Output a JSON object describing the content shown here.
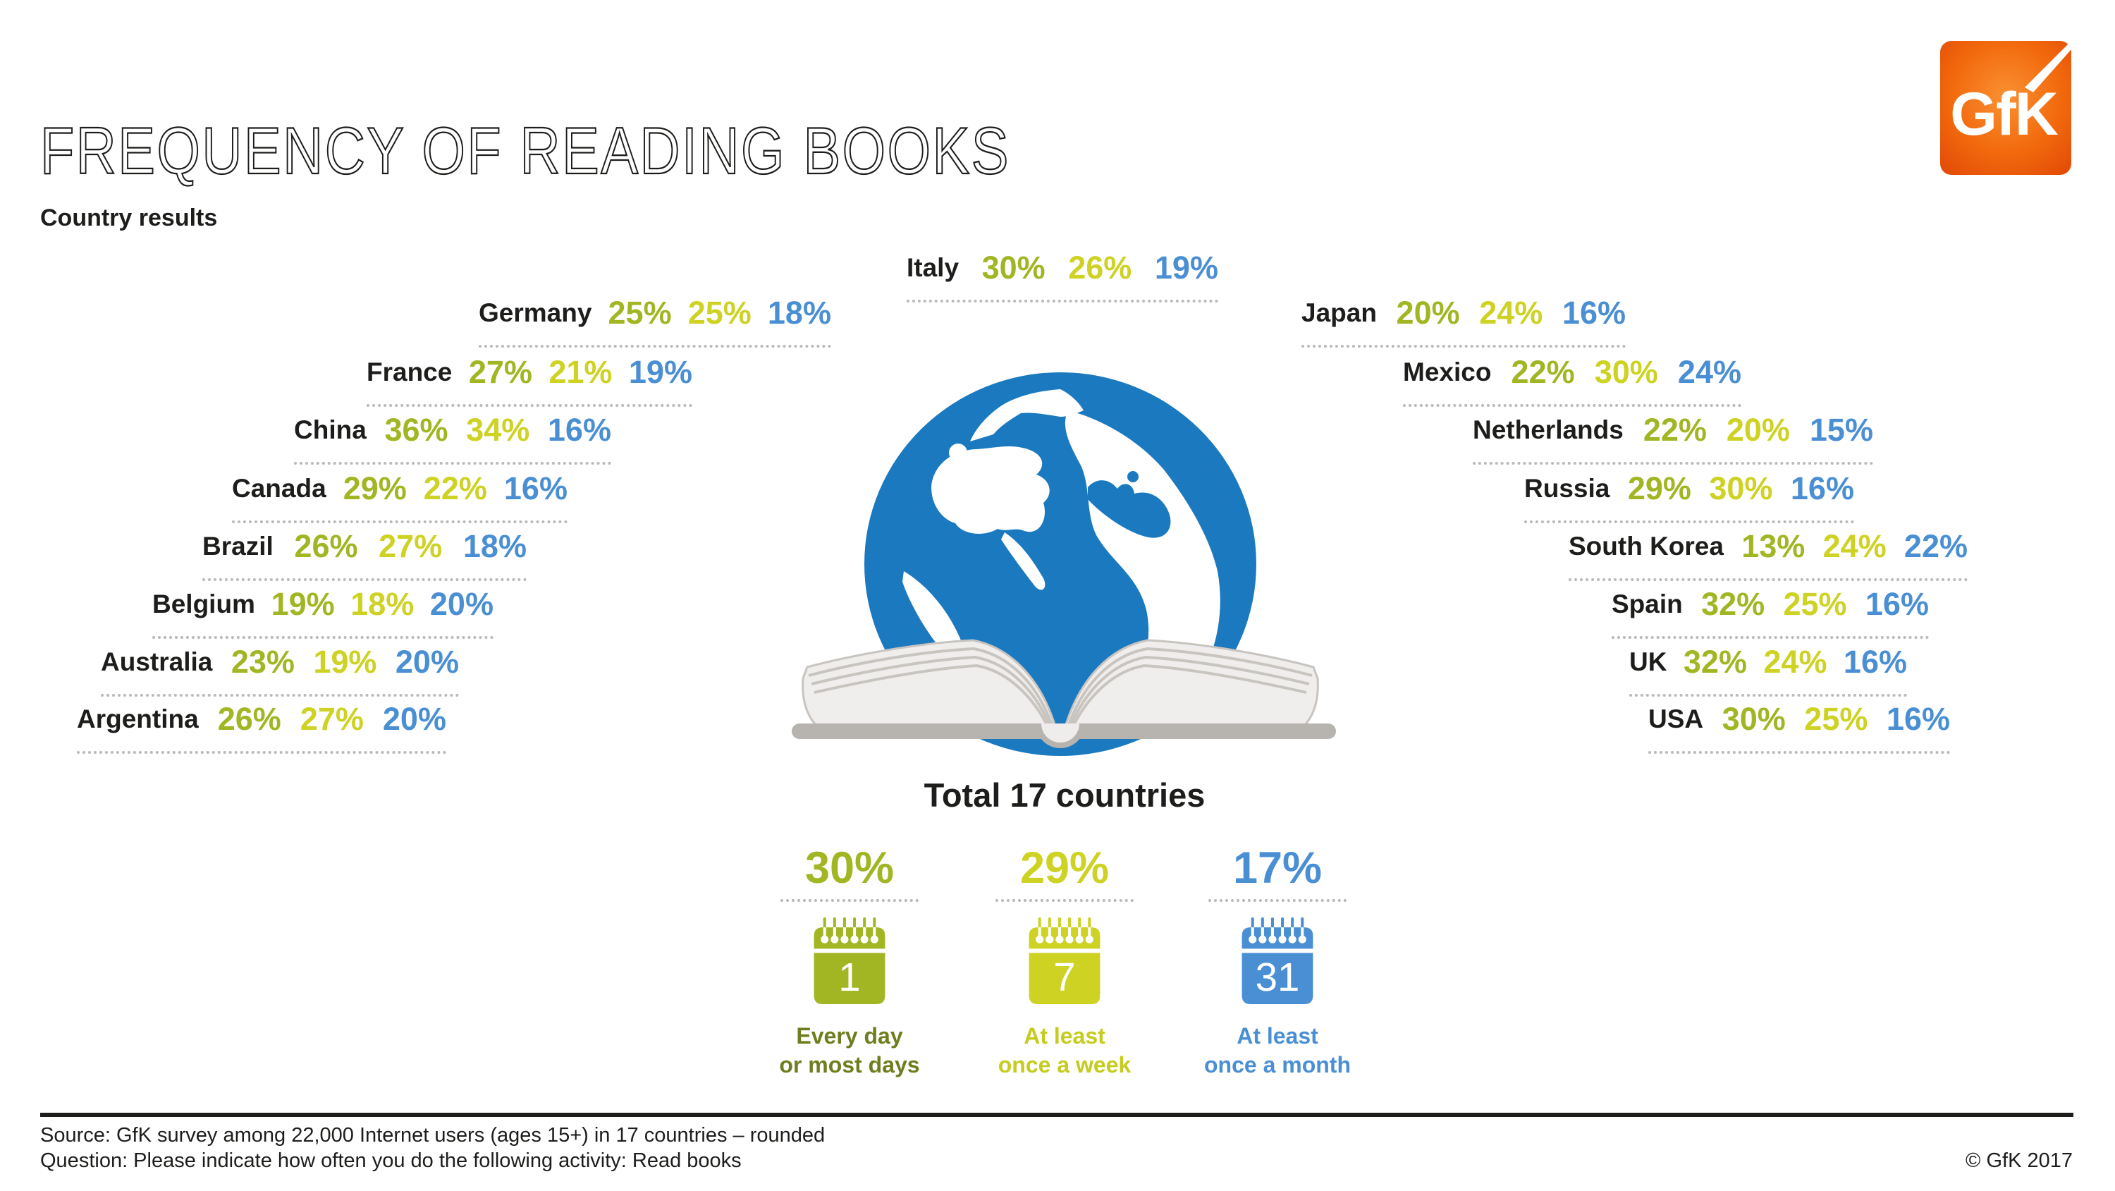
{
  "header": {
    "title": "FREQUENCY OF READING BOOKS",
    "subtitle": "Country results"
  },
  "logo": {
    "text": "GfK"
  },
  "rows": {
    "left": [
      {
        "label": "Germany",
        "v1": "25%",
        "v2": "25%",
        "v3": "18%"
      },
      {
        "label": "France",
        "v1": "27%",
        "v2": "21%",
        "v3": "19%"
      },
      {
        "label": "China",
        "v1": "36%",
        "v2": "34%",
        "v3": "16%"
      },
      {
        "label": "Canada",
        "v1": "29%",
        "v2": "22%",
        "v3": "16%"
      },
      {
        "label": "Brazil",
        "v1": "26%",
        "v2": "27%",
        "v3": "18%"
      },
      {
        "label": "Belgium",
        "v1": "19%",
        "v2": "18%",
        "v3": "20%"
      },
      {
        "label": "Australia",
        "v1": "23%",
        "v2": "19%",
        "v3": "20%"
      },
      {
        "label": "Argentina",
        "v1": "26%",
        "v2": "27%",
        "v3": "20%"
      }
    ],
    "center": [
      {
        "label": "Italy",
        "v1": "30%",
        "v2": "26%",
        "v3": "19%"
      }
    ],
    "right": [
      {
        "label": "Japan",
        "v1": "20%",
        "v2": "24%",
        "v3": "16%"
      },
      {
        "label": "Mexico",
        "v1": "22%",
        "v2": "30%",
        "v3": "24%"
      },
      {
        "label": "Netherlands",
        "v1": "22%",
        "v2": "20%",
        "v3": "15%"
      },
      {
        "label": "Russia",
        "v1": "29%",
        "v2": "30%",
        "v3": "16%"
      },
      {
        "label": "South Korea",
        "v1": "13%",
        "v2": "24%",
        "v3": "22%"
      },
      {
        "label": "Spain",
        "v1": "32%",
        "v2": "25%",
        "v3": "16%"
      },
      {
        "label": "UK",
        "v1": "32%",
        "v2": "24%",
        "v3": "16%"
      },
      {
        "label": "USA",
        "v1": "30%",
        "v2": "25%",
        "v3": "16%"
      }
    ]
  },
  "totals": {
    "heading": "Total 17 countries",
    "columns": [
      {
        "pct": "30%",
        "calendar_number": "1",
        "label_line1": "Every day",
        "label_line2": "or most days"
      },
      {
        "pct": "29%",
        "calendar_number": "7",
        "label_line1": "At least",
        "label_line2": "once a week"
      },
      {
        "pct": "17%",
        "calendar_number": "31",
        "label_line1": "At least",
        "label_line2": "once a month"
      }
    ]
  },
  "footer": {
    "source": "Source: GfK survey among 22,000 Internet users (ages 15+) in 17 countries – rounded",
    "question": "Question: Please indicate how often you do the following activity: Read books",
    "copyright": "© GfK 2017"
  },
  "colors": {
    "green_dark": "#a2b523",
    "green_light": "#cdd223",
    "blue": "#4a8fd3",
    "label_olive": "#6f7d1e",
    "globe_blue": "#1b79bf",
    "logo_orange": "#ee5a10"
  },
  "chart_data": {
    "type": "table",
    "title": "FREQUENCY OF READING BOOKS",
    "subtitle": "Country results",
    "unit": "%",
    "series_labels": [
      "Every day or most days",
      "At least once a week",
      "At least once a month"
    ],
    "countries": [
      {
        "name": "Italy",
        "values": [
          30,
          26,
          19
        ]
      },
      {
        "name": "Germany",
        "values": [
          25,
          25,
          18
        ]
      },
      {
        "name": "France",
        "values": [
          27,
          21,
          19
        ]
      },
      {
        "name": "China",
        "values": [
          36,
          34,
          16
        ]
      },
      {
        "name": "Canada",
        "values": [
          29,
          22,
          16
        ]
      },
      {
        "name": "Brazil",
        "values": [
          26,
          27,
          18
        ]
      },
      {
        "name": "Belgium",
        "values": [
          19,
          18,
          20
        ]
      },
      {
        "name": "Australia",
        "values": [
          23,
          19,
          20
        ]
      },
      {
        "name": "Argentina",
        "values": [
          26,
          27,
          20
        ]
      },
      {
        "name": "Japan",
        "values": [
          20,
          24,
          16
        ]
      },
      {
        "name": "Mexico",
        "values": [
          22,
          30,
          24
        ]
      },
      {
        "name": "Netherlands",
        "values": [
          22,
          20,
          15
        ]
      },
      {
        "name": "Russia",
        "values": [
          29,
          30,
          16
        ]
      },
      {
        "name": "South Korea",
        "values": [
          13,
          24,
          22
        ]
      },
      {
        "name": "Spain",
        "values": [
          32,
          25,
          16
        ]
      },
      {
        "name": "UK",
        "values": [
          32,
          24,
          16
        ]
      },
      {
        "name": "USA",
        "values": [
          30,
          25,
          16
        ]
      }
    ],
    "total": {
      "name": "Total 17 countries",
      "values": [
        30,
        29,
        17
      ]
    },
    "source": "GfK survey among 22,000 Internet users (ages 15+) in 17 countries – rounded"
  }
}
